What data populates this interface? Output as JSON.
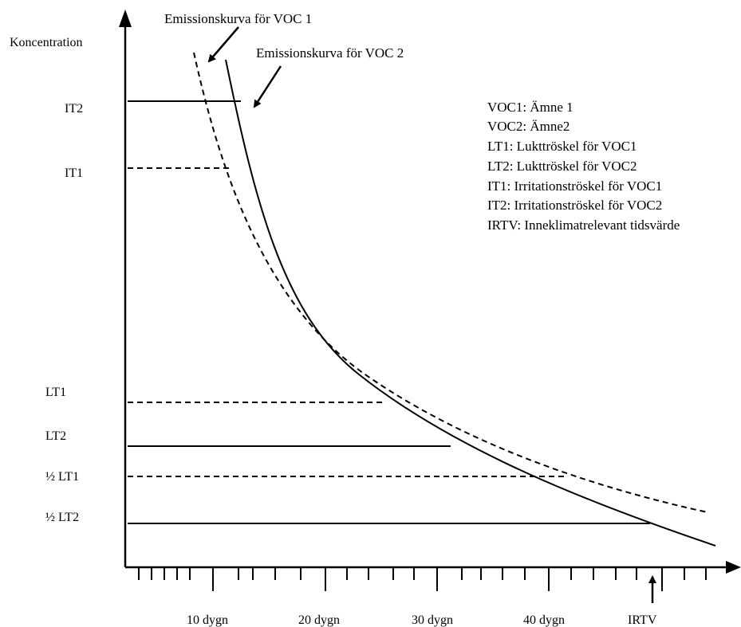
{
  "y_axis_label": "Koncentration",
  "annotations": {
    "curve1": "Emissionskurva för VOC 1",
    "curve2": "Emissionskurva för VOC 2"
  },
  "levels": [
    {
      "id": "it2",
      "label": "IT2",
      "style": "solid"
    },
    {
      "id": "it1",
      "label": "IT1",
      "style": "dashed"
    },
    {
      "id": "lt1",
      "label": "LT1",
      "style": "dashed"
    },
    {
      "id": "lt2",
      "label": "LT2",
      "style": "solid"
    },
    {
      "id": "half-lt1",
      "label": "½ LT1",
      "style": "dashed"
    },
    {
      "id": "half-lt2",
      "label": "½ LT2",
      "style": "solid"
    }
  ],
  "x_labels": [
    "10 dygn",
    "20 dygn",
    "30 dygn",
    "40 dygn"
  ],
  "irtv_label": "IRTV",
  "legend": [
    "VOC1: Ämne 1",
    "VOC2: Ämne2",
    "LT1: Lukttröskel för VOC1",
    "LT2: Lukttröskel för VOC2",
    "IT1: Irritationströskel för VOC1",
    "IT2: Irritationströskel för VOC2",
    "IRTV: Inneklimatrelevant tidsvärde"
  ]
}
